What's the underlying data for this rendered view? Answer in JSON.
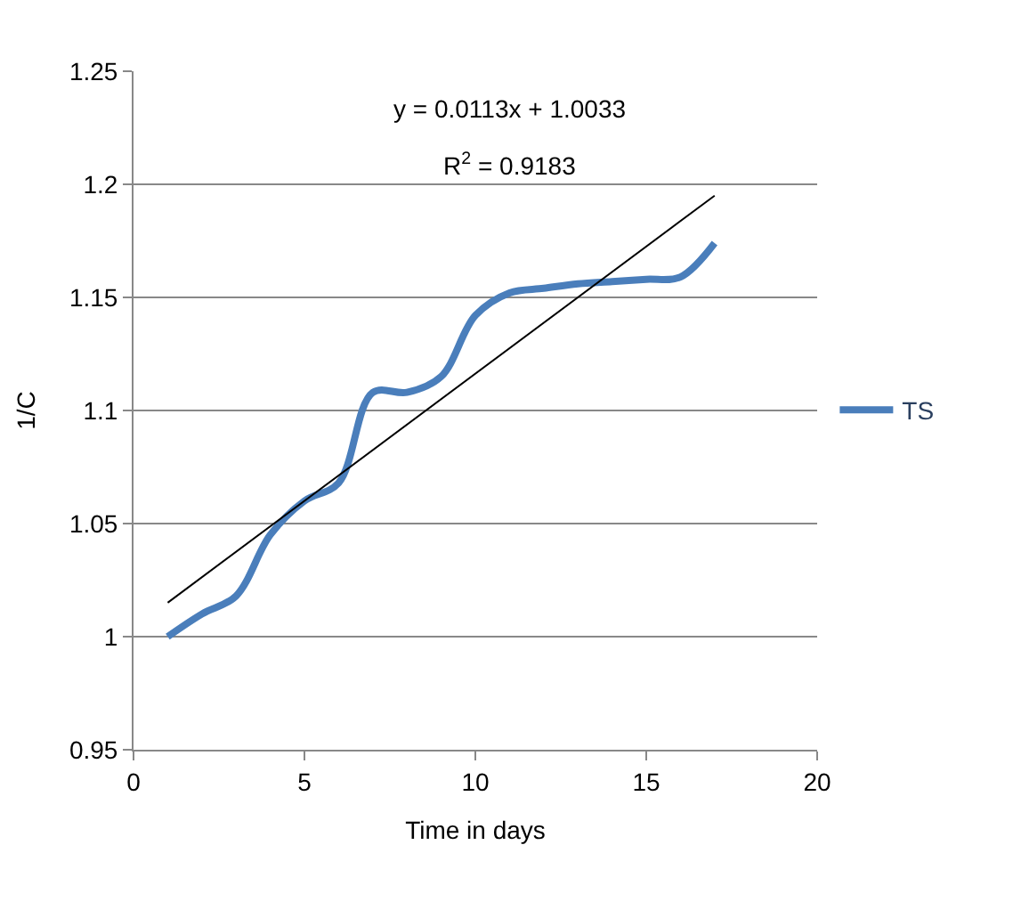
{
  "chart_data": {
    "type": "line",
    "xlabel": "Time in days",
    "ylabel": "1/C",
    "series": [
      {
        "name": "TS",
        "color": "#4a7ebb",
        "x": [
          1,
          2,
          3,
          4,
          5,
          6,
          7,
          8,
          9,
          10,
          11,
          12,
          13,
          14,
          15,
          16,
          17
        ],
        "values": [
          1.0,
          1.01,
          1.018,
          1.045,
          1.06,
          1.068,
          1.108,
          1.108,
          1.115,
          1.142,
          1.152,
          1.154,
          1.156,
          1.157,
          1.158,
          1.159,
          1.174
        ]
      },
      {
        "type": "line",
        "color": "#000000",
        "x": [
          1,
          17
        ],
        "values": [
          1.015,
          1.195
        ]
      }
    ],
    "annotations": [
      "y = 0.0113x + 1.0033",
      "R$^{2}$ = 0.9183"
    ],
    "xlim": [
      0,
      20
    ],
    "xticks": [
      0,
      5,
      10,
      15,
      20
    ],
    "ylim": [
      0.95,
      1.25
    ],
    "yticks": [
      0.95,
      1,
      1.05,
      1.1,
      1.15,
      1.2,
      1.25
    ],
    "grid": "y",
    "legend": "right",
    "marker": "none"
  }
}
